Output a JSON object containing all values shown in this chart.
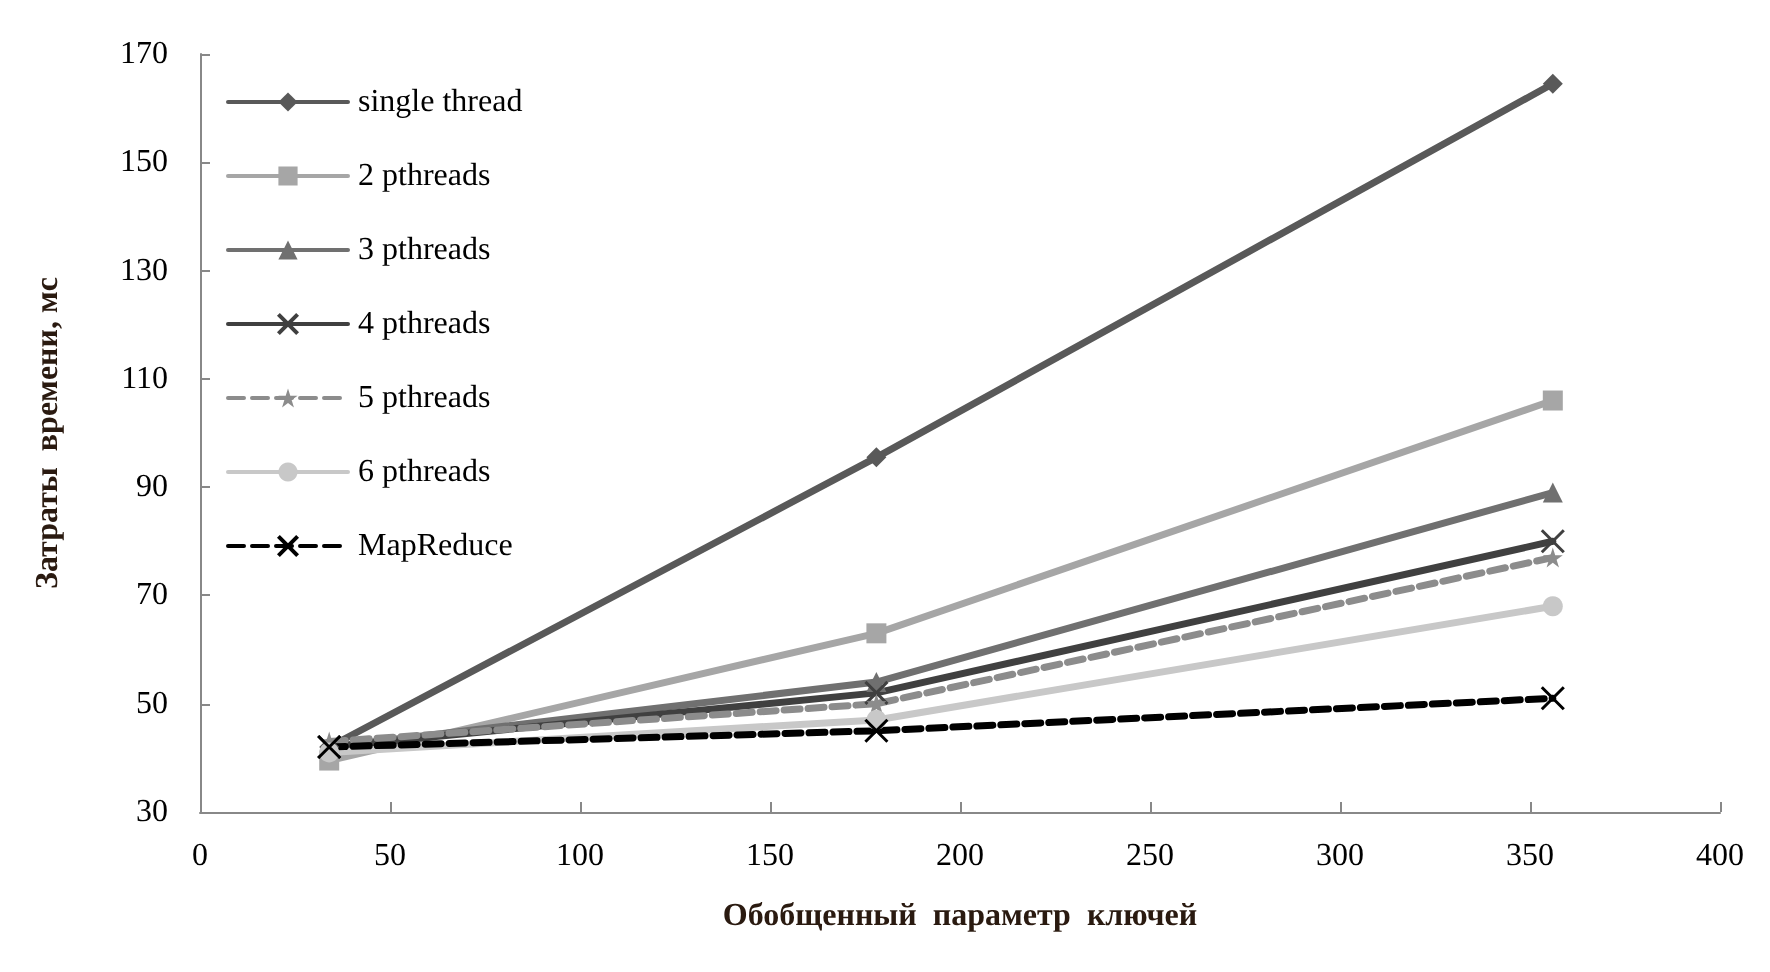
{
  "chart_data": {
    "type": "line",
    "xlabel": "Обобщенный  параметр  ключей",
    "ylabel": "Затраты  времени, мс",
    "x": [
      34,
      178,
      356
    ],
    "xlim": [
      0,
      400
    ],
    "xticks": [
      0,
      50,
      100,
      150,
      200,
      250,
      300,
      350,
      400
    ],
    "ylim": [
      30,
      170
    ],
    "yticks": [
      30,
      50,
      70,
      90,
      110,
      130,
      150,
      170
    ],
    "grid": false,
    "legend": "top left",
    "line_style": "solid",
    "series": [
      {
        "name": "single thread",
        "color": "#595959",
        "marker": "diamond",
        "values": [
          42,
          95.5,
          164.5
        ]
      },
      {
        "name": "2 pthreads",
        "color": "#a6a6a6",
        "marker": "square",
        "values": [
          39.5,
          63,
          106
        ]
      },
      {
        "name": "3 pthreads",
        "color": "#707070",
        "marker": "triangle",
        "values": [
          42,
          54,
          89
        ]
      },
      {
        "name": "4 pthreads",
        "color": "#404040",
        "marker": "cross",
        "values": [
          42,
          52,
          80
        ]
      },
      {
        "name": "5 pthreads",
        "color": "#8c8c8c",
        "marker": "star",
        "line_style": "dashed",
        "values": [
          43,
          50,
          77
        ]
      },
      {
        "name": "6 pthreads",
        "color": "#c8c8c8",
        "marker": "circle",
        "values": [
          41,
          47,
          68
        ]
      },
      {
        "name": "MapReduce",
        "color": "#000000",
        "marker": "cross",
        "line_style": "dashed",
        "values": [
          42,
          45,
          51
        ]
      }
    ]
  }
}
